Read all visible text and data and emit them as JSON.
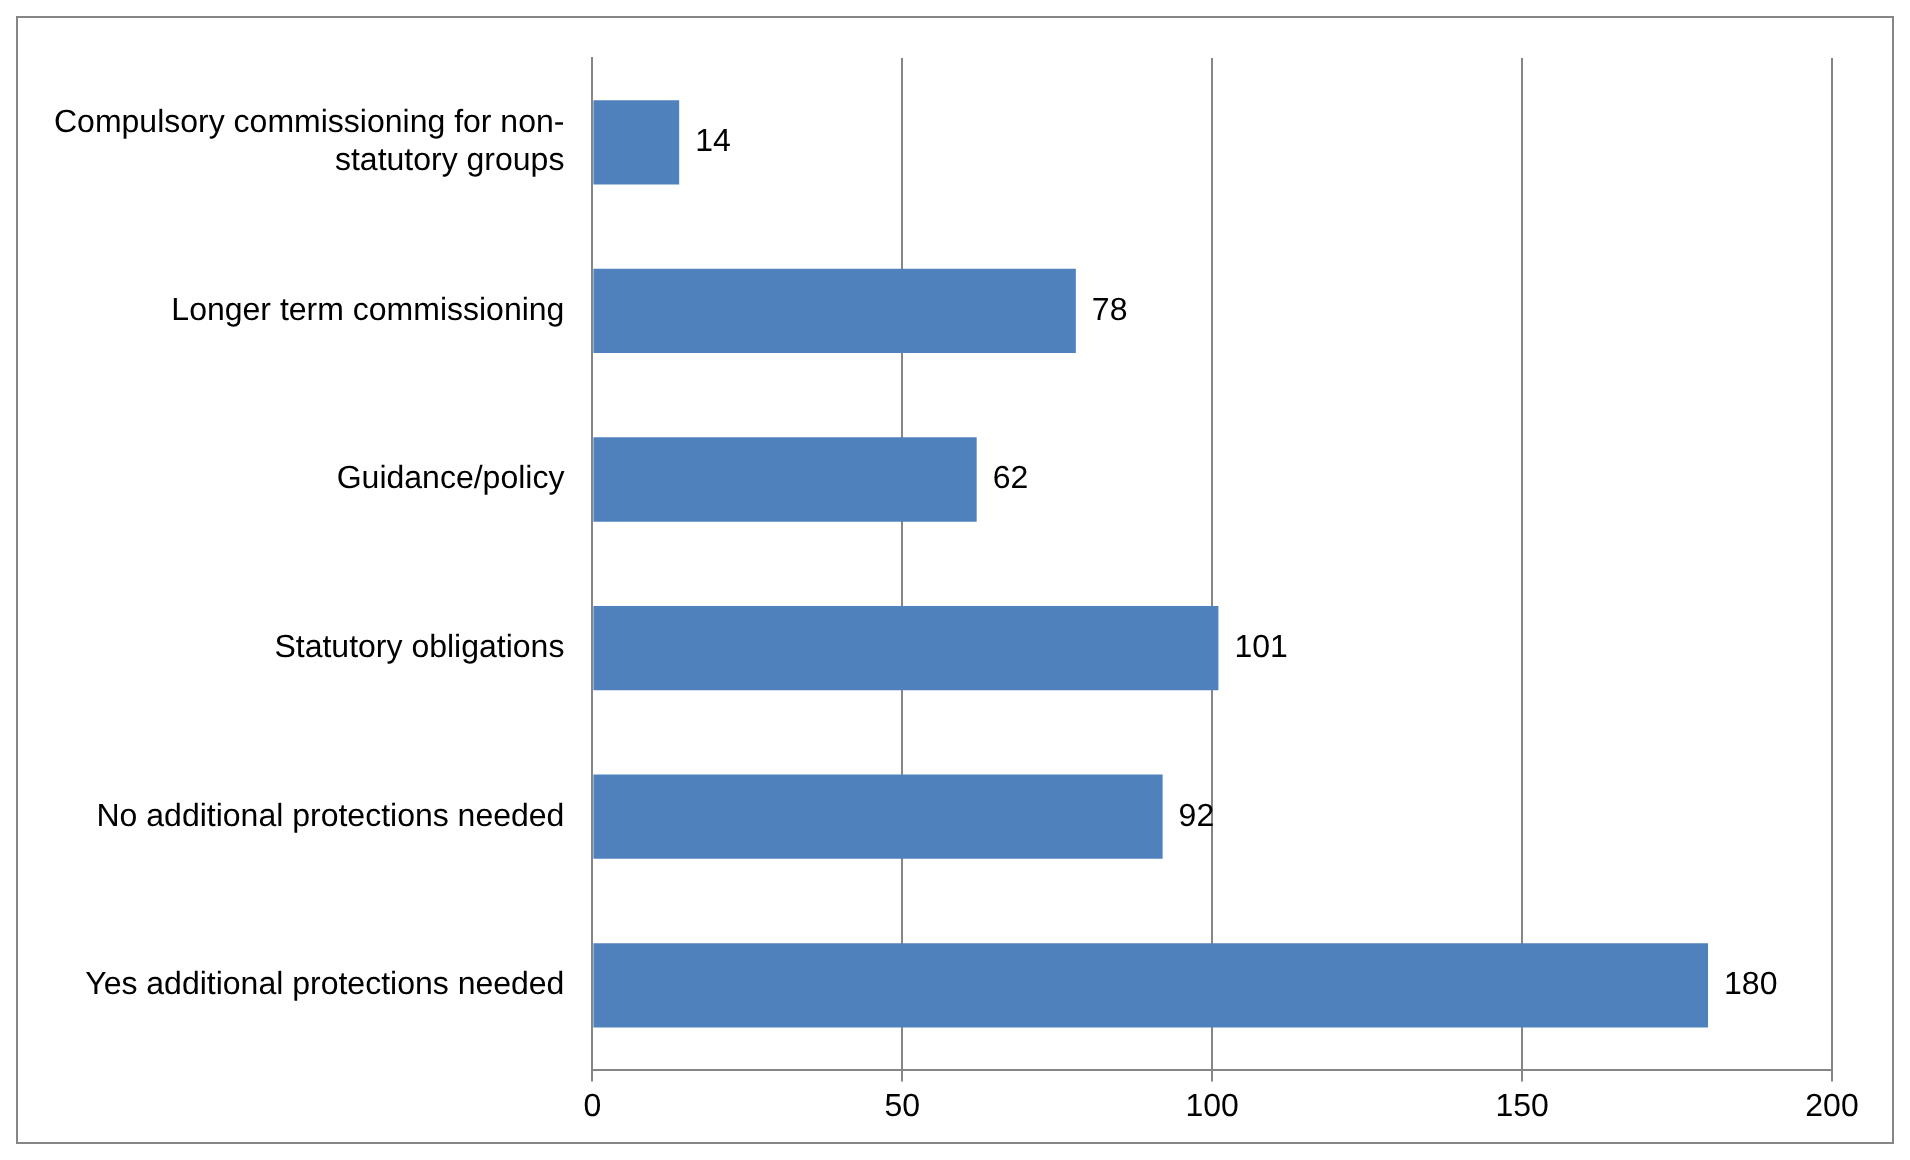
{
  "chart_data": {
    "type": "bar",
    "orientation": "horizontal",
    "categories": [
      "Compulsory commissioning for non-statutory groups",
      "Longer term commissioning",
      "Guidance/policy",
      "Statutory obligations",
      "No additional protections needed",
      "Yes additional protections needed"
    ],
    "values": [
      14,
      78,
      62,
      101,
      92,
      180
    ],
    "color": "#4f81bd",
    "xlim": [
      0,
      200
    ],
    "xticks": [
      0,
      50,
      100,
      150,
      200
    ],
    "grid": "x",
    "data_labels": true,
    "legend": false
  }
}
